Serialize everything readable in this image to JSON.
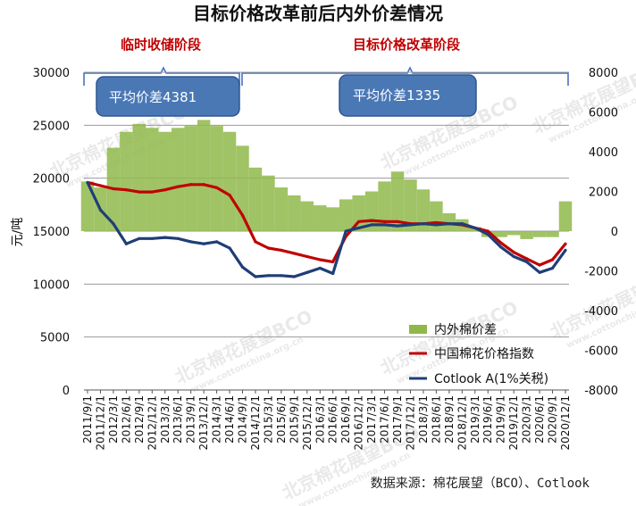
{
  "chart_data": {
    "type": "area+line",
    "title": "目标价格改革前后内外价差情况",
    "phases": [
      {
        "label": "临时收储阶段",
        "box": "平均价差4381"
      },
      {
        "label": "目标价格改革阶段",
        "box": "平均价差1335"
      }
    ],
    "ylabel_left": "元/吨",
    "ylim_left": [
      0,
      30000
    ],
    "yticks_left": [
      "0",
      "5000",
      "10000",
      "15000",
      "20000",
      "25000",
      "30000"
    ],
    "ylim_right": [
      -8000,
      8000
    ],
    "yticks_right": [
      "-8000",
      "-6000",
      "-4000",
      "-2000",
      "0",
      "2000",
      "4000",
      "6000",
      "8000"
    ],
    "x_tick_labels": [
      "2011/9/1",
      "2011/12/1",
      "2012/3/1",
      "2012/6/1",
      "2012/9/1",
      "2012/12/1",
      "2013/3/1",
      "2013/6/1",
      "2013/9/1",
      "2013/12/1",
      "2014/3/1",
      "2014/6/1",
      "2014/9/1",
      "2014/12/1",
      "2015/3/1",
      "2015/6/1",
      "2015/9/1",
      "2015/12/1",
      "2016/3/1",
      "2016/6/1",
      "2016/9/1",
      "2016/12/1",
      "2017/3/1",
      "2017/6/1",
      "2017/9/1",
      "2017/12/1",
      "2018/3/1",
      "2018/6/1",
      "2018/9/1",
      "2018/12/1",
      "2019/3/1",
      "2019/6/1",
      "2019/9/1",
      "2019/12/1",
      "2020/3/1",
      "2020/6/1",
      "2020/9/1",
      "2020/12/1"
    ],
    "legend_position": "bottom-right",
    "series": [
      {
        "name": "内外棉价差",
        "type": "area",
        "axis": "right",
        "color": "#8fb84a",
        "values": [
          2500,
          2200,
          4200,
          5000,
          5400,
          5200,
          5000,
          5200,
          5300,
          5600,
          5300,
          5000,
          4300,
          3200,
          2800,
          2200,
          1800,
          1500,
          1300,
          1200,
          1600,
          1800,
          2000,
          2500,
          3000,
          2600,
          2100,
          1500,
          900,
          600,
          200,
          -300,
          -300,
          -200,
          -400,
          -300,
          -300,
          1500
        ]
      },
      {
        "name": "中国棉花价格指数",
        "type": "line",
        "axis": "left",
        "color": "#c00000",
        "values": [
          19600,
          19300,
          19000,
          18900,
          18700,
          18700,
          18900,
          19200,
          19400,
          19400,
          19100,
          18400,
          16500,
          14000,
          13400,
          13200,
          12900,
          12600,
          12300,
          12100,
          14500,
          15900,
          16000,
          15900,
          15900,
          15700,
          15700,
          15800,
          15700,
          15600,
          15300,
          15000,
          13900,
          13000,
          12400,
          11800,
          12300,
          13800
        ]
      },
      {
        "name": "Cotlook A(1%关税)",
        "type": "line",
        "axis": "left",
        "color": "#1f3e77",
        "values": [
          19600,
          17000,
          15700,
          13800,
          14300,
          14300,
          14400,
          14300,
          14000,
          13800,
          14000,
          13400,
          11600,
          10700,
          10800,
          10800,
          10700,
          11100,
          11500,
          11000,
          15000,
          15300,
          15600,
          15600,
          15500,
          15600,
          15700,
          15600,
          15700,
          15700,
          15300,
          14700,
          13500,
          12600,
          12100,
          11100,
          11500,
          13200
        ]
      }
    ]
  },
  "source_text": "数据来源：棉花展望（BCO）、Cotlook",
  "watermark": {
    "main": "北京棉花展望BCO",
    "sub": "www.cottonchina.org.cn"
  }
}
